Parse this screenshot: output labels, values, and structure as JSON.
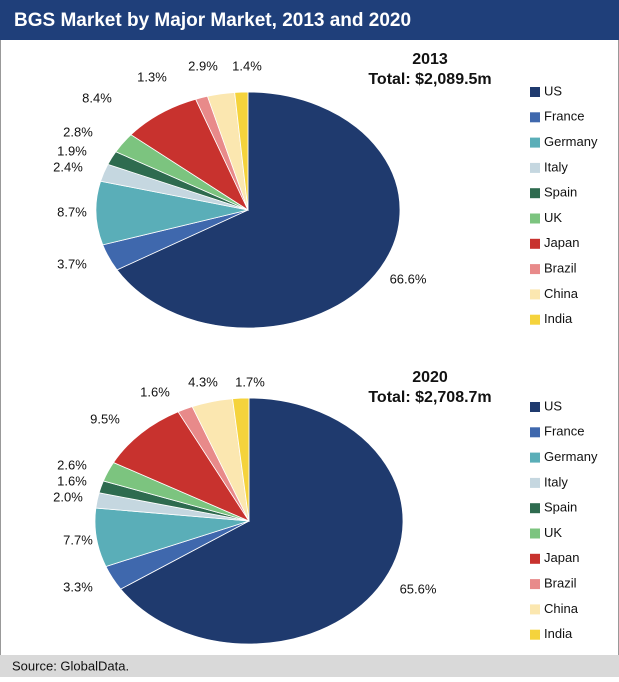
{
  "header": {
    "title": "BGS Market by Major Market, 2013 and 2020"
  },
  "source": "Source: GlobalData.",
  "chart_data": [
    {
      "type": "pie",
      "title": "2013",
      "subtitle": "Total: $2,089.5m",
      "categories": [
        "US",
        "France",
        "Germany",
        "Italy",
        "Spain",
        "UK",
        "Japan",
        "Brazil",
        "China",
        "India"
      ],
      "values": [
        66.6,
        3.7,
        8.7,
        2.4,
        1.9,
        2.8,
        8.4,
        1.3,
        2.9,
        1.4
      ],
      "value_labels": [
        "66.6%",
        "3.7%",
        "8.7%",
        "2.4%",
        "1.9%",
        "2.8%",
        "8.4%",
        "1.3%",
        "2.9%",
        "1.4%"
      ],
      "colors": [
        "#1f3a6e",
        "#3f68ad",
        "#5aaeb8",
        "#c5d7e0",
        "#2e6b4f",
        "#7cc47f",
        "#c8322e",
        "#e88a8a",
        "#fbe7b0",
        "#f5d33c"
      ]
    },
    {
      "type": "pie",
      "title": "2020",
      "subtitle": "Total: $2,708.7m",
      "categories": [
        "US",
        "France",
        "Germany",
        "Italy",
        "Spain",
        "UK",
        "Japan",
        "Brazil",
        "China",
        "India"
      ],
      "values": [
        65.6,
        3.3,
        7.7,
        2.0,
        1.6,
        2.6,
        9.5,
        1.6,
        4.3,
        1.7
      ],
      "value_labels": [
        "65.6%",
        "3.3%",
        "7.7%",
        "2.0%",
        "1.6%",
        "2.6%",
        "9.5%",
        "1.6%",
        "4.3%",
        "1.7%"
      ],
      "colors": [
        "#1f3a6e",
        "#3f68ad",
        "#5aaeb8",
        "#c5d7e0",
        "#2e6b4f",
        "#7cc47f",
        "#c8322e",
        "#e88a8a",
        "#fbe7b0",
        "#f5d33c"
      ]
    }
  ]
}
